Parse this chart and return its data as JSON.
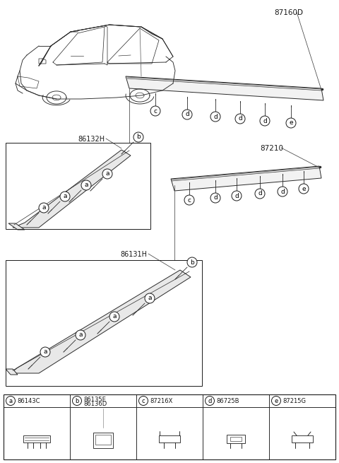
{
  "bg_color": "#ffffff",
  "border_color": "#1a1a1a",
  "line_color": "#2a2a2a",
  "gray_fill": "#d8d8d8",
  "light_fill": "#eeeeee",
  "part_labels": {
    "a": "86143C",
    "b_top": "86135E",
    "b_bot": "86136D",
    "c": "87216X",
    "d": "86725B",
    "e": "87215G"
  },
  "main_labels": {
    "top_right": "87160D",
    "mid_right": "87210",
    "upper_left": "86132H",
    "lower_left": "86131H"
  },
  "legend_cols": [
    "a",
    "b",
    "c",
    "d",
    "e"
  ],
  "fig_w": 4.8,
  "fig_h": 6.55,
  "dpi": 100
}
